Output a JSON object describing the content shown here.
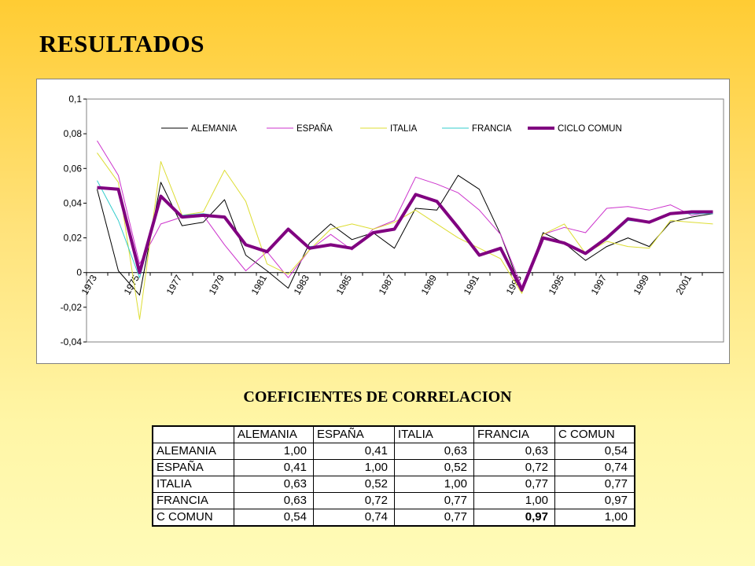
{
  "title": "RESULTADOS",
  "chart_data": {
    "type": "line",
    "x": [
      1973,
      1974,
      1975,
      1976,
      1977,
      1978,
      1979,
      1980,
      1981,
      1982,
      1983,
      1984,
      1985,
      1986,
      1987,
      1988,
      1989,
      1990,
      1991,
      1992,
      1993,
      1994,
      1995,
      1996,
      1997,
      1998,
      1999,
      2000,
      2001,
      2002
    ],
    "x_tick_labels": [
      "1973",
      "1975",
      "1977",
      "1979",
      "1981",
      "1983",
      "1985",
      "1987",
      "1989",
      "1991",
      "1993",
      "1995",
      "1997",
      "1999",
      "2001"
    ],
    "y_tick_labels": [
      "0,1",
      "0,08",
      "0,06",
      "0,04",
      "0,02",
      "0",
      "-0,02",
      "-0,04"
    ],
    "ylim": [
      -0.04,
      0.1
    ],
    "y_ticks": [
      0.1,
      0.08,
      0.06,
      0.04,
      0.02,
      0,
      -0.02,
      -0.04
    ],
    "legend_position": "top",
    "grid": false,
    "series": [
      {
        "name": "ALEMANIA",
        "color": "#000000",
        "width": 1,
        "values": [
          0.048,
          0.001,
          -0.013,
          0.052,
          0.027,
          0.029,
          0.042,
          0.01,
          0.001,
          -0.009,
          0.017,
          0.028,
          0.019,
          0.023,
          0.014,
          0.037,
          0.036,
          0.056,
          0.048,
          0.022,
          -0.011,
          0.023,
          0.017,
          0.007,
          0.015,
          0.02,
          0.015,
          0.029,
          0.032,
          0.034
        ]
      },
      {
        "name": "ESPAÑA",
        "color": "#CC33CC",
        "width": 1,
        "values": [
          0.076,
          0.056,
          0.005,
          0.028,
          0.032,
          0.033,
          0.016,
          0.001,
          0.012,
          -0.003,
          0.013,
          0.022,
          0.013,
          0.025,
          0.03,
          0.055,
          0.051,
          0.046,
          0.036,
          0.022,
          -0.008,
          0.022,
          0.026,
          0.023,
          0.037,
          0.038,
          0.036,
          0.039,
          0.033,
          0.035
        ]
      },
      {
        "name": "ITALIA",
        "color": "#DDDD33",
        "width": 1,
        "values": [
          0.069,
          0.052,
          -0.027,
          0.064,
          0.033,
          0.035,
          0.059,
          0.041,
          0.005,
          -0.001,
          0.013,
          0.025,
          0.028,
          0.025,
          0.029,
          0.036,
          0.028,
          0.02,
          0.014,
          0.008,
          -0.012,
          0.022,
          0.028,
          0.011,
          0.018,
          0.015,
          0.014,
          0.03,
          0.029,
          0.028
        ]
      },
      {
        "name": "FRANCIA",
        "color": "#33CCCC",
        "width": 1,
        "values": [
          0.053,
          0.03,
          -0.003,
          0.043,
          0.033,
          0.034,
          0.032,
          0.016,
          0.012,
          0.025,
          0.015,
          0.016,
          0.014,
          0.023,
          0.025,
          0.045,
          0.041,
          0.026,
          0.01,
          0.014,
          -0.009,
          0.02,
          0.017,
          0.011,
          0.019,
          0.03,
          0.029,
          0.034,
          0.034,
          0.034
        ]
      },
      {
        "name": "CICLO COMUN",
        "color": "#800080",
        "width": 4,
        "values": [
          0.049,
          0.048,
          0.0,
          0.044,
          0.032,
          0.033,
          0.032,
          0.016,
          0.012,
          0.025,
          0.014,
          0.016,
          0.014,
          0.023,
          0.025,
          0.045,
          0.041,
          0.026,
          0.01,
          0.014,
          -0.01,
          0.02,
          0.017,
          0.011,
          0.02,
          0.031,
          0.029,
          0.034,
          0.035,
          0.035
        ]
      }
    ]
  },
  "correlation": {
    "title": "COEFICIENTES DE CORRELACION",
    "columns": [
      "",
      "ALEMANIA",
      "ESPAÑA",
      "ITALIA",
      "FRANCIA",
      "C COMUN"
    ],
    "rows": [
      {
        "label": "ALEMANIA",
        "values": [
          "1,00",
          "0,41",
          "0,63",
          "0,63",
          "0,54"
        ]
      },
      {
        "label": "ESPAÑA",
        "values": [
          "0,41",
          "1,00",
          "0,52",
          "0,72",
          "0,74"
        ]
      },
      {
        "label": "ITALIA",
        "values": [
          "0,63",
          "0,52",
          "1,00",
          "0,77",
          "0,77"
        ]
      },
      {
        "label": "FRANCIA",
        "values": [
          "0,63",
          "0,72",
          "0,77",
          "1,00",
          "0,97"
        ]
      },
      {
        "label": "C COMUN",
        "values": [
          "0,54",
          "0,74",
          "0,77",
          "0,97",
          "1,00"
        ]
      }
    ]
  }
}
